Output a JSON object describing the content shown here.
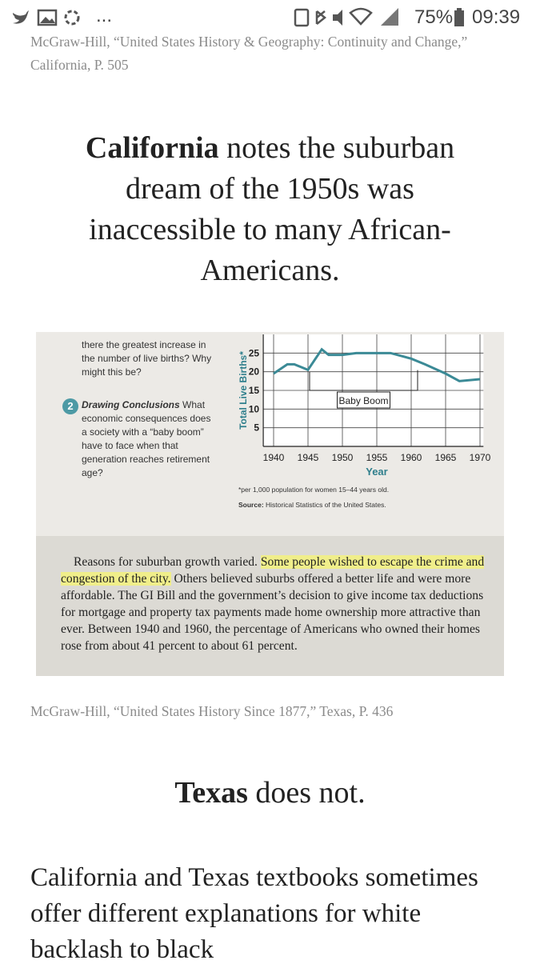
{
  "status_bar": {
    "battery": "75%",
    "time": "09:39",
    "more": "..."
  },
  "caption_1": "McGraw-Hill, “United States History & Geography: Continuity and Change,” California, P. 505",
  "heading_1": {
    "bold": "California",
    "rest": " notes the suburban dream of the 1950s was inaccessible to many African-Americans."
  },
  "textbook": {
    "question_1_tail": "there the greatest increase in the number of live births? Why might this be?",
    "question_2": {
      "number": "2",
      "title": "Drawing Conclusions",
      "text": " What economic consequences does a society with a “baby boom” have to face when that generation reaches retirement age?"
    },
    "chart": {
      "y_label": "Total Live Births*",
      "x_label": "Year",
      "annotation": "Baby Boom",
      "x": [
        1940,
        1942,
        1943,
        1945,
        1947,
        1948,
        1950,
        1952,
        1955,
        1957,
        1960,
        1962,
        1965,
        1967,
        1970
      ],
      "values": [
        19.5,
        22,
        22,
        20.5,
        26,
        24.5,
        24.5,
        25,
        25,
        25,
        23.5,
        22,
        19.5,
        17.5,
        18
      ],
      "color": "#3b8a96",
      "xlim": [
        1938.5,
        1970.5
      ],
      "ylim": [
        0,
        30
      ],
      "xticks": [
        1940,
        1945,
        1950,
        1955,
        1960,
        1965,
        1970
      ],
      "yticks": [
        5,
        10,
        15,
        20,
        25
      ],
      "footnote": "*per 1,000 population for women 15–44 years old.",
      "source_label": "Source:",
      "source": " Historical Statistics of the United States."
    },
    "paragraph": {
      "before": "Reasons for suburban growth varied. ",
      "highlight": "Some people wished to escape the crime and congestion of the city.",
      "after": " Others believed suburbs offered a better life and were more affordable. The GI Bill and the government’s decision to give income tax deductions for mortgage and property tax payments made home ownership more attractive than ever. Between 1940 and 1960, the percentage of Americans who owned their homes rose from about 41 percent to about 61 percent."
    }
  },
  "caption_2": "McGraw-Hill, “United States History Since 1877,” Texas, P. 436",
  "heading_2": {
    "bold": "Texas",
    "rest": " does not."
  },
  "body": "California and Texas textbooks sometimes offer different explanations for white backlash to black"
}
